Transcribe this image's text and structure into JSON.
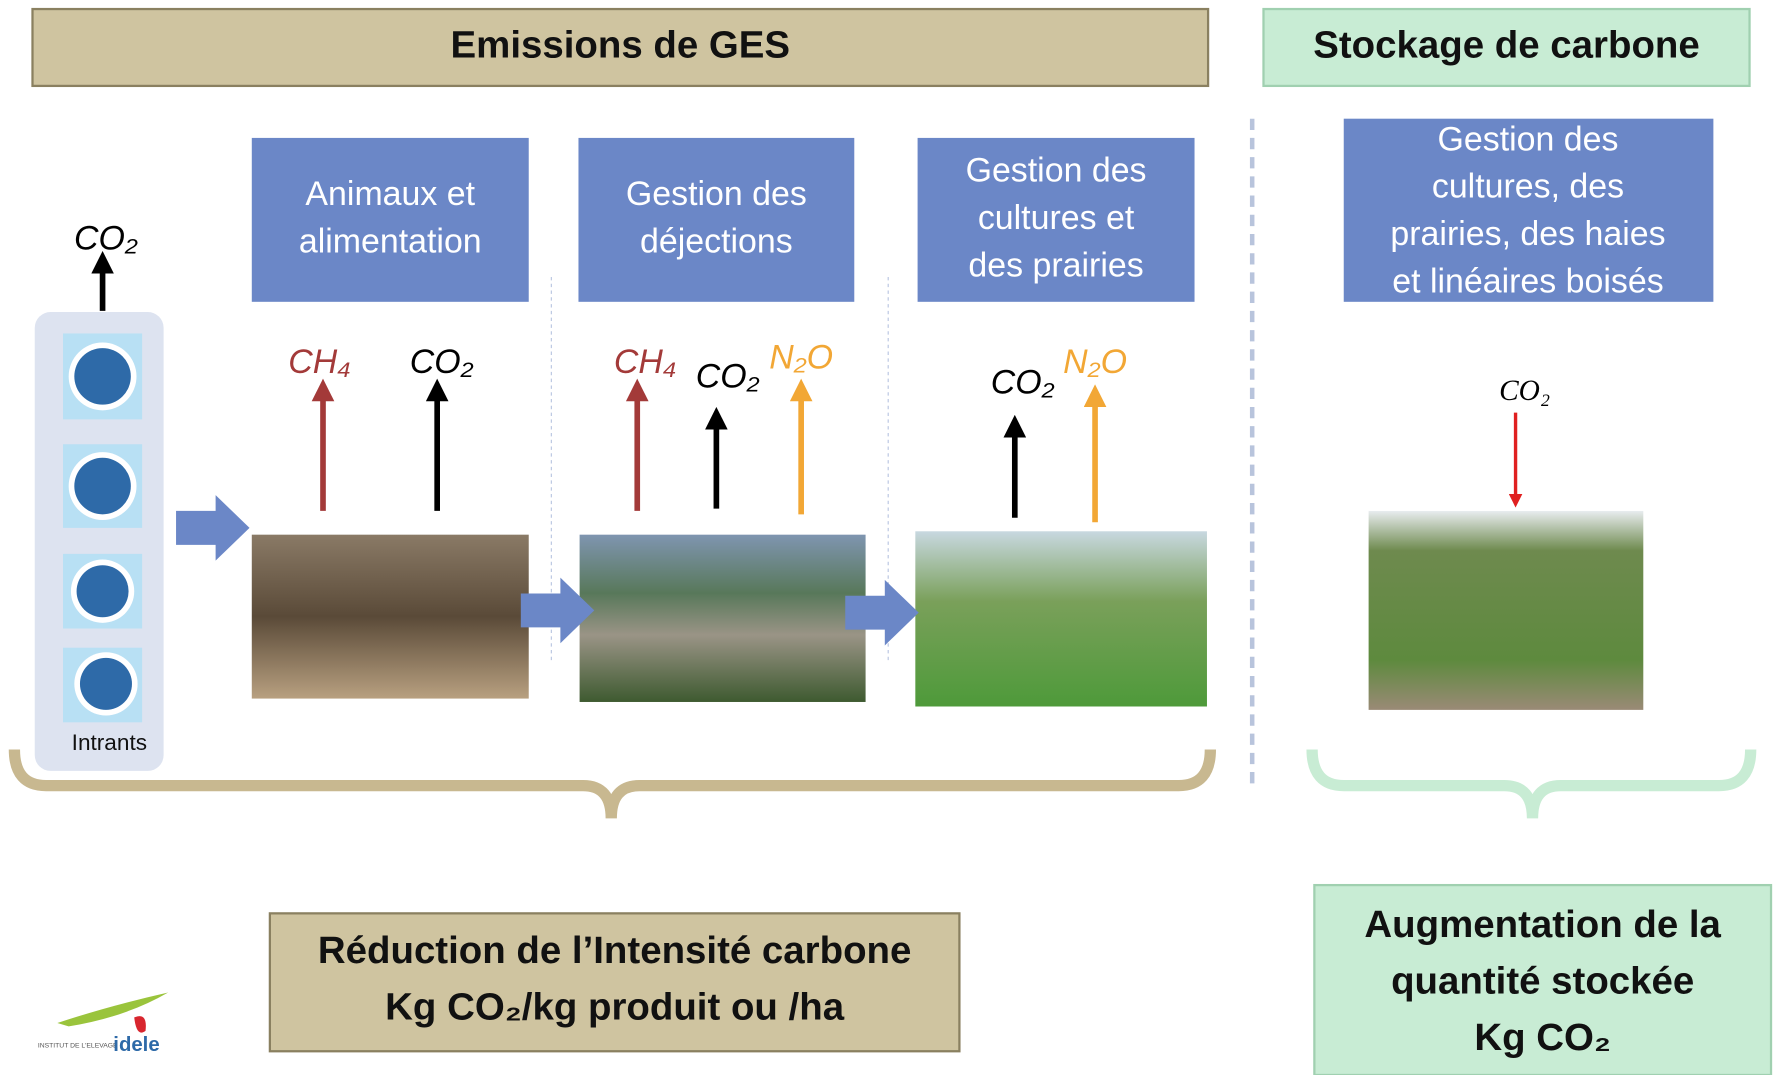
{
  "sections": [
    {
      "title": "Emissions de GES"
    },
    {
      "title": "Stockage de carbone"
    }
  ],
  "intrants": {
    "label": "Intrants",
    "gas": "CO₂"
  },
  "stages": [
    {
      "label_lines": [
        "Animaux et",
        "alimentation"
      ],
      "gases": [
        {
          "name": "CH₄",
          "color": "#a33a39"
        },
        {
          "name": "CO₂",
          "color": "#000000"
        }
      ]
    },
    {
      "label_lines": [
        "Gestion des",
        "déjections"
      ],
      "gases": [
        {
          "name": "CH₄",
          "color": "#a33a39"
        },
        {
          "name": "CO₂",
          "color": "#000000"
        },
        {
          "name": "N₂O",
          "color": "#f2a735"
        }
      ]
    },
    {
      "label_lines": [
        "Gestion des",
        "cultures et",
        "des prairies"
      ],
      "gases": [
        {
          "name": "CO₂",
          "color": "#000000"
        },
        {
          "name": "N₂O",
          "color": "#f2a735"
        }
      ]
    }
  ],
  "storage": {
    "label_lines": [
      "Gestion des",
      "cultures, des",
      "prairies, des haies",
      "et linéaires boisés"
    ],
    "gas": "CO₂"
  },
  "outcomes": [
    {
      "lines": [
        "Réduction de l’Intensité carbone",
        "Kg CO₂/kg produit ou /ha"
      ]
    },
    {
      "lines": [
        "Augmentation de la",
        "quantité stockée",
        "Kg CO₂"
      ]
    }
  ],
  "logo": {
    "brand": "idele",
    "tagline": "INSTITUT DE L'ELEVAGE"
  }
}
